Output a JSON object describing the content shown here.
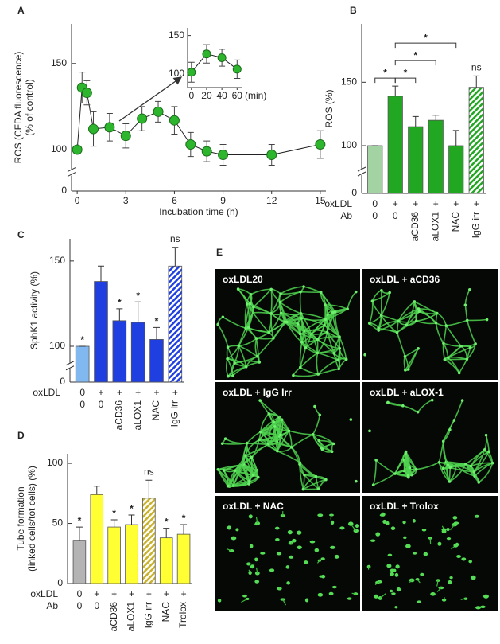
{
  "chart_data": [
    {
      "type": "line",
      "panel_label": "A",
      "ylabel": [
        "ROS (CFDA fluorescence)",
        "(% of control)"
      ],
      "xlabel": "Incubation time (h)",
      "x": [
        0,
        0.3,
        0.6,
        1,
        2,
        3,
        4,
        5,
        6,
        7,
        8,
        9,
        12,
        15
      ],
      "values": [
        100,
        136,
        133,
        112,
        113,
        108,
        118,
        122,
        117,
        103,
        99,
        97,
        97,
        103
      ],
      "error": [
        0,
        9,
        7,
        10,
        8,
        7,
        7,
        6,
        8,
        7,
        6,
        6,
        6,
        8
      ],
      "color": "#2db52d",
      "xlim": [
        -0.35,
        15.35
      ],
      "xticks": [
        0,
        3,
        6,
        9,
        12,
        15
      ],
      "ylim": [
        0,
        173
      ],
      "yticks": [
        0,
        100,
        150
      ],
      "y_break": true,
      "inset": {
        "x": [
          0,
          20,
          40,
          60
        ],
        "values": [
          102,
          126,
          121,
          106
        ],
        "error": [
          13,
          12,
          11,
          12
        ],
        "xlabel": "(min)",
        "xlim": [
          -5,
          67
        ],
        "xticks": [
          0,
          20,
          40,
          60
        ],
        "ylim": [
          82,
          160
        ],
        "yticks": [
          100,
          150
        ]
      }
    },
    {
      "type": "bar",
      "panel_label": "B",
      "ylabel": "ROS (%)",
      "row_label": "oxLDL",
      "row": [
        "0",
        "+",
        "+",
        "+",
        "+",
        "+"
      ],
      "category_label": "Ab",
      "categories": [
        "0",
        "0",
        "aCD36",
        "aLOX1",
        "NAC",
        "IgG irr"
      ],
      "values": [
        100,
        139,
        115,
        120,
        100,
        146
      ],
      "error": [
        0,
        8,
        8,
        4,
        12,
        9
      ],
      "colors": [
        "#a3d3a3",
        "#22a722",
        "#22a722",
        "#22a722",
        "#22a722",
        "#22a722"
      ],
      "hatched": [
        false,
        false,
        false,
        false,
        false,
        true
      ],
      "annotations": [
        "*",
        null,
        "*",
        "*",
        "*",
        "ns"
      ],
      "brackets": true,
      "ylim": [
        0,
        196
      ],
      "yticks": [
        0,
        100,
        150
      ],
      "y_break": true
    },
    {
      "type": "bar",
      "panel_label": "C",
      "ylabel": "SphK1 activity (%)",
      "row_label": "oxLDL",
      "row": [
        "0",
        "+",
        "+",
        "+",
        "+",
        "+"
      ],
      "categories": [
        "0",
        "0",
        "aCD36",
        "aLOX1",
        "NAC",
        "IgG irr"
      ],
      "values": [
        100,
        138,
        115,
        114,
        104,
        147
      ],
      "error": [
        0,
        9,
        7,
        12,
        7,
        11
      ],
      "colors": [
        "#82b8f0",
        "#1f3fe0",
        "#1f3fe0",
        "#1f3fe0",
        "#1f3fe0",
        "#1f3fe0"
      ],
      "hatched": [
        false,
        false,
        false,
        false,
        false,
        true
      ],
      "annotations": [
        "*",
        null,
        "*",
        "*",
        "*",
        "ns"
      ],
      "ylim": [
        0,
        163
      ],
      "yticks": [
        0,
        100,
        150
      ],
      "y_break": true
    },
    {
      "type": "bar",
      "panel_label": "D",
      "ylabel": [
        "Tube formation",
        "(linked cells/tot cells) (%)"
      ],
      "row_label": "oxLDL",
      "row": [
        "0",
        "+",
        "+",
        "+",
        "+",
        "+",
        "+"
      ],
      "category_label": "Ab",
      "categories": [
        "0",
        "0",
        "aCD36",
        "aLOX1",
        "IgG irr",
        "NAC",
        "Trolox"
      ],
      "values": [
        36,
        74,
        47,
        49,
        71,
        38,
        41
      ],
      "error": [
        11,
        7,
        6,
        8,
        15,
        8,
        8
      ],
      "colors": [
        "#b4b4b4",
        "#ffff33",
        "#ffff33",
        "#ffff33",
        "#c9b22a",
        "#ffff33",
        "#ffff33"
      ],
      "hatched": [
        false,
        false,
        false,
        false,
        true,
        false,
        false
      ],
      "annotations": [
        "*",
        null,
        "*",
        "*",
        "ns",
        "*",
        "*"
      ],
      "ylim": [
        0,
        108
      ],
      "yticks": [
        0,
        50,
        100
      ],
      "y_break": false
    }
  ],
  "images": {
    "panel_label": "E",
    "panels": [
      {
        "label": "oxLDL20"
      },
      {
        "label": "oxLDL + aCD36"
      },
      {
        "label": "oxLDL + IgG Irr"
      },
      {
        "label": "oxLDL + aLOX-1"
      },
      {
        "label": "oxLDL + NAC"
      },
      {
        "label": "oxLDL + Trolox"
      }
    ]
  }
}
